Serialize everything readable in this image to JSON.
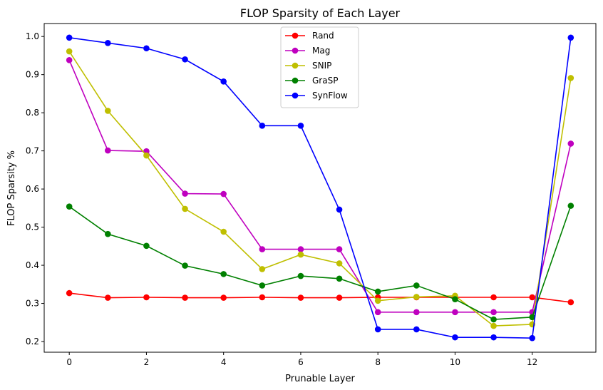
{
  "chart_data": {
    "type": "line",
    "title": "FLOP Sparsity of Each Layer",
    "xlabel": "Prunable Layer",
    "ylabel": "FLOP Sparsity %",
    "xlim": [
      -0.65,
      13.65
    ],
    "ylim": [
      0.172,
      1.034
    ],
    "xticks": [
      0,
      2,
      4,
      6,
      8,
      10,
      12
    ],
    "yticks": [
      0.2,
      0.3,
      0.4,
      0.5,
      0.6,
      0.7,
      0.8,
      0.9,
      1.0
    ],
    "ytick_labels": [
      "0.2",
      "0.3",
      "0.4",
      "0.5",
      "0.6",
      "0.7",
      "0.8",
      "0.9",
      "1.0"
    ],
    "grid": false,
    "legend_position": "top-center",
    "x": [
      0,
      1,
      2,
      3,
      4,
      5,
      6,
      7,
      8,
      9,
      10,
      11,
      12,
      13
    ],
    "series": [
      {
        "name": "Rand",
        "color": "#ff0000",
        "values": [
          0.327,
          0.315,
          0.316,
          0.315,
          0.315,
          0.316,
          0.315,
          0.315,
          0.316,
          0.316,
          0.316,
          0.316,
          0.316,
          0.303
        ]
      },
      {
        "name": "Mag",
        "color": "#bf00bf",
        "values": [
          0.938,
          0.701,
          0.699,
          0.588,
          0.587,
          0.442,
          0.442,
          0.442,
          0.277,
          0.277,
          0.277,
          0.277,
          0.277,
          0.719
        ]
      },
      {
        "name": "SNIP",
        "color": "#bfbf00",
        "values": [
          0.961,
          0.805,
          0.688,
          0.548,
          0.488,
          0.39,
          0.428,
          0.405,
          0.307,
          0.317,
          0.32,
          0.241,
          0.245,
          0.891
        ]
      },
      {
        "name": "GraSP",
        "color": "#008000",
        "values": [
          0.554,
          0.482,
          0.451,
          0.399,
          0.377,
          0.347,
          0.372,
          0.365,
          0.331,
          0.347,
          0.311,
          0.258,
          0.264,
          0.556
        ]
      },
      {
        "name": "SynFlow",
        "color": "#0000ff",
        "values": [
          0.997,
          0.983,
          0.969,
          0.94,
          0.882,
          0.766,
          0.766,
          0.546,
          0.232,
          0.232,
          0.211,
          0.211,
          0.209,
          0.997
        ]
      }
    ]
  }
}
